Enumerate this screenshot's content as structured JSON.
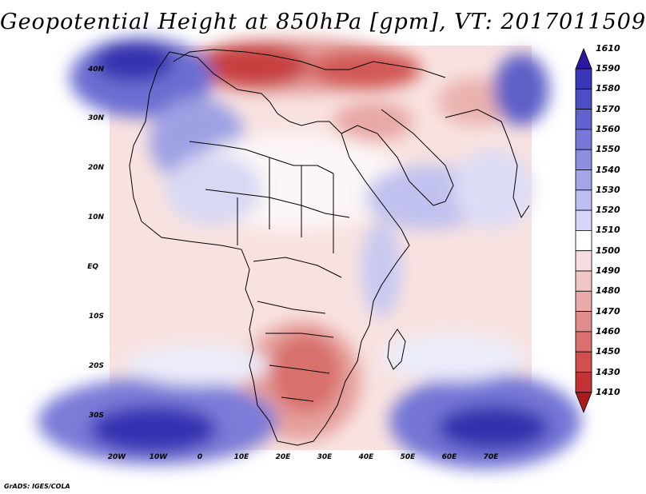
{
  "title": "Geopotential Height at 850hPa [gpm], VT: 2017011509",
  "credit": "GrADS: IGES/COLA",
  "x_axis_labels": [
    "20W",
    "10W",
    "0",
    "10E",
    "20E",
    "30E",
    "40E",
    "50E",
    "60E",
    "70E"
  ],
  "y_axis_labels": [
    "40N",
    "30N",
    "20N",
    "10N",
    "EQ",
    "10S",
    "20S",
    "30S"
  ],
  "colorbar": {
    "labels": [
      "1610",
      "1590",
      "1580",
      "1570",
      "1560",
      "1550",
      "1540",
      "1530",
      "1520",
      "1510",
      "1500",
      "1490",
      "1480",
      "1470",
      "1460",
      "1450",
      "1430",
      "1410"
    ],
    "colors": [
      "#2b1aa0",
      "#3a36b8",
      "#4d4dc6",
      "#6162cf",
      "#7878d8",
      "#8d8ee0",
      "#a4a5e8",
      "#bcbdf0",
      "#d6d7f8",
      "#ffffff",
      "#f6dede",
      "#f0c6c6",
      "#e9aaaa",
      "#e28d8d",
      "#db6e6e",
      "#d24f4f",
      "#c43333",
      "#ad1c1c"
    ]
  }
}
